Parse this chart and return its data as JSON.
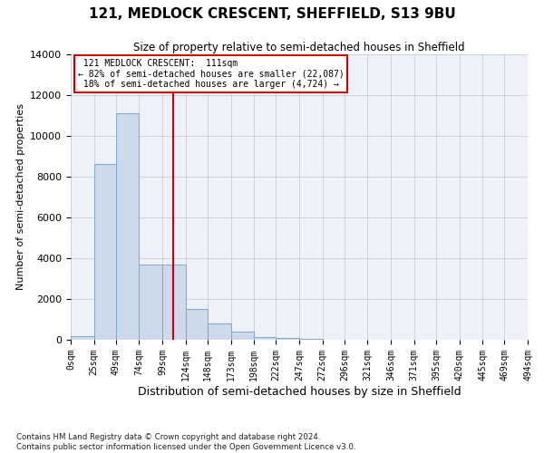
{
  "title_line1": "121, MEDLOCK CRESCENT, SHEFFIELD, S13 9BU",
  "title_line2": "Size of property relative to semi-detached houses in Sheffield",
  "xlabel": "Distribution of semi-detached houses by size in Sheffield",
  "ylabel": "Number of semi-detached properties",
  "footnote1": "Contains HM Land Registry data © Crown copyright and database right 2024.",
  "footnote2": "Contains public sector information licensed under the Open Government Licence v3.0.",
  "property_size": 111,
  "property_label": "121 MEDLOCK CRESCENT:  111sqm",
  "pct_smaller": 82,
  "num_smaller": 22087,
  "pct_larger": 18,
  "num_larger": 4724,
  "bar_color": "#ccdaeb",
  "bar_edge_color": "#7aaac8",
  "vline_color": "#cc0000",
  "annotation_box_color": "#cc0000",
  "bin_edges": [
    0,
    25,
    49,
    74,
    99,
    124,
    148,
    173,
    198,
    222,
    247,
    272,
    296,
    321,
    346,
    371,
    395,
    420,
    445,
    469,
    494
  ],
  "bin_counts": [
    200,
    8600,
    11100,
    3700,
    3700,
    1500,
    800,
    400,
    150,
    80,
    40,
    20,
    10,
    5,
    3,
    2,
    1,
    1,
    0,
    0
  ],
  "xlim": [
    0,
    494
  ],
  "ylim": [
    0,
    14000
  ],
  "yticks": [
    0,
    2000,
    4000,
    6000,
    8000,
    10000,
    12000,
    14000
  ],
  "xtick_labels": [
    "0sqm",
    "25sqm",
    "49sqm",
    "74sqm",
    "99sqm",
    "124sqm",
    "148sqm",
    "173sqm",
    "198sqm",
    "222sqm",
    "247sqm",
    "272sqm",
    "296sqm",
    "321sqm",
    "346sqm",
    "371sqm",
    "395sqm",
    "420sqm",
    "445sqm",
    "469sqm",
    "494sqm"
  ],
  "background_color": "#ffffff",
  "plot_bg_color": "#eef2f8",
  "grid_color": "#c0c8d8"
}
